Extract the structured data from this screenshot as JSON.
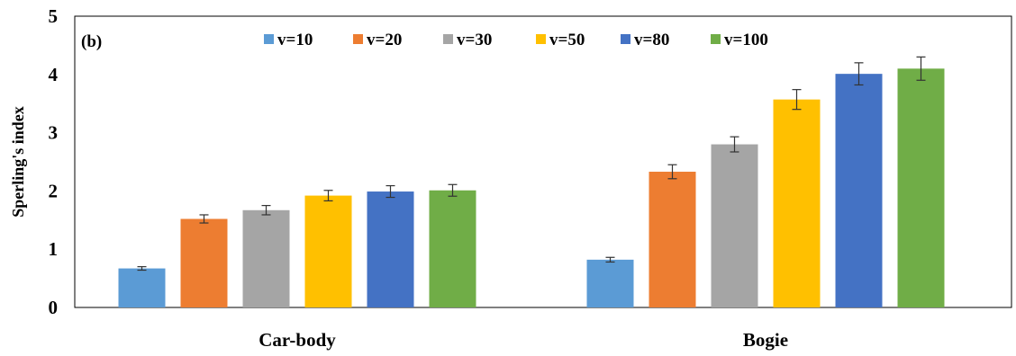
{
  "chart_data": {
    "type": "bar",
    "panel_label": "(b)",
    "ylabel": "Sperling's index",
    "ylim": [
      0,
      5
    ],
    "yticks": [
      "0",
      "1",
      "2",
      "3",
      "4",
      "5"
    ],
    "categories": [
      "Car-body",
      "Bogie"
    ],
    "legend_position": "top",
    "series": [
      {
        "name": "v=10",
        "color": "#5b9bd5",
        "values": [
          0.67,
          0.82
        ],
        "errors": [
          0.03,
          0.04
        ]
      },
      {
        "name": "v=20",
        "color": "#ed7d31",
        "values": [
          1.52,
          2.33
        ],
        "errors": [
          0.07,
          0.12
        ]
      },
      {
        "name": "v=30",
        "color": "#a5a5a5",
        "values": [
          1.67,
          2.8
        ],
        "errors": [
          0.08,
          0.13
        ]
      },
      {
        "name": "v=50",
        "color": "#ffc000",
        "values": [
          1.92,
          3.57
        ],
        "errors": [
          0.09,
          0.17
        ]
      },
      {
        "name": "v=80",
        "color": "#4472c4",
        "values": [
          1.99,
          4.01
        ],
        "errors": [
          0.1,
          0.19
        ]
      },
      {
        "name": "v=100",
        "color": "#70ad47",
        "values": [
          2.01,
          4.1
        ],
        "errors": [
          0.1,
          0.2
        ]
      }
    ]
  }
}
